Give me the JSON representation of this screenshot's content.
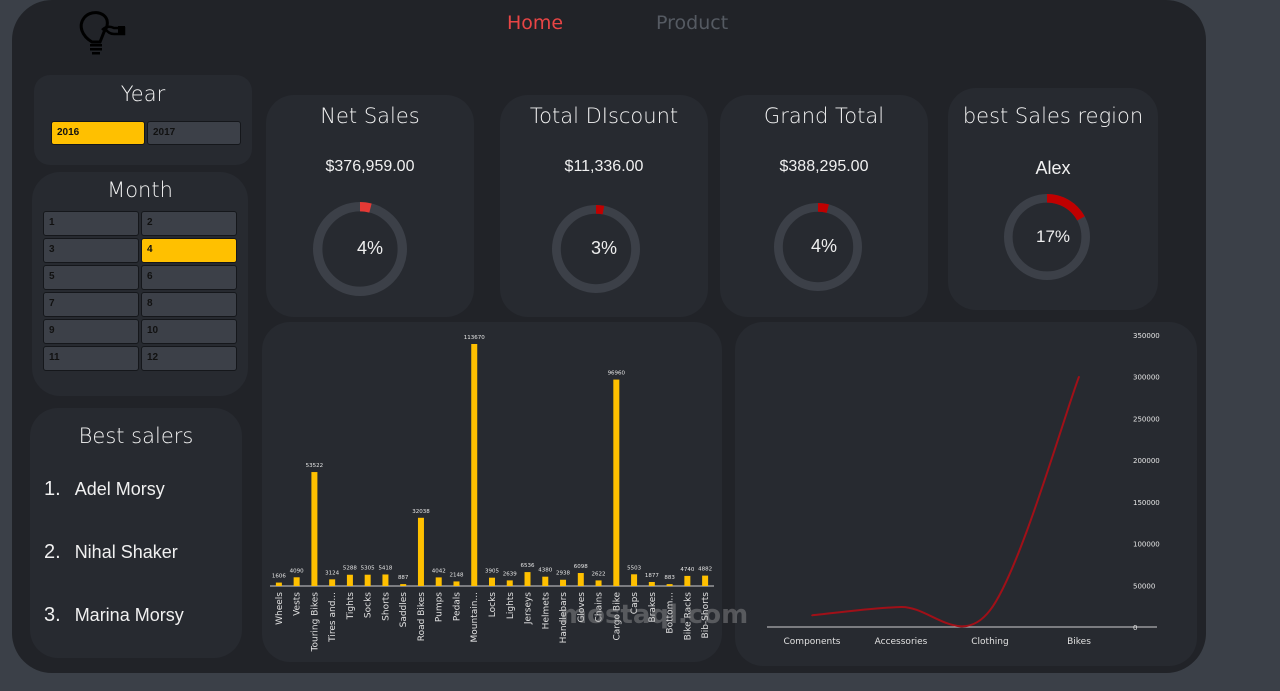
{
  "nav": {
    "home": "Home",
    "product": "Product",
    "home_color": "#e84545",
    "product_color": "#555a62"
  },
  "year_slicer": {
    "title": "Year",
    "options": [
      "2016",
      "2017"
    ],
    "selected": "2016"
  },
  "month_slicer": {
    "title": "Month",
    "options": [
      "1",
      "2",
      "3",
      "4",
      "5",
      "6",
      "7",
      "8",
      "9",
      "10",
      "11",
      "12"
    ],
    "selected": "4"
  },
  "best_salers": {
    "title": "Best salers",
    "items": [
      {
        "rank": "1.",
        "name": "Adel Morsy"
      },
      {
        "rank": "2.",
        "name": "Nihal Shaker"
      },
      {
        "rank": "3.",
        "name": "Marina Morsy"
      }
    ]
  },
  "kpis": [
    {
      "title": "Net Sales",
      "value": "$376,959.00",
      "percent_label": "4%",
      "percent": 4,
      "color": "#e53935"
    },
    {
      "title": "Total DIscount",
      "value": "$11,336.00",
      "percent_label": "3%",
      "percent": 3,
      "color": "#c00000"
    },
    {
      "title": "Grand Total",
      "value": "$388,295.00",
      "percent_label": "4%",
      "percent": 4,
      "color": "#c00000"
    },
    {
      "title": "best Sales region",
      "value": "Alex",
      "percent_label": "17%",
      "percent": 17,
      "color": "#c00000"
    }
  ],
  "accent_color": "#ffc000",
  "watermark": "mostaql.com",
  "chart_data": [
    {
      "type": "bar",
      "title": "",
      "xlabel": "",
      "ylabel": "",
      "categories": [
        "Wheels",
        "Vests",
        "Touring Bikes",
        "Tires and...",
        "Tights",
        "Socks",
        "Shorts",
        "Saddles",
        "Road Bikes",
        "Pumps",
        "Pedals",
        "Mountain...",
        "Locks",
        "Lights",
        "Jerseys",
        "Helmets",
        "Handlebars",
        "Gloves",
        "Chains",
        "Cargo Bike",
        "Caps",
        "Brakes",
        "Bottom...",
        "Bike Racks",
        "Bib-Shorts"
      ],
      "values": [
        1606,
        4090,
        53522,
        3124,
        5288,
        5305,
        5418,
        887,
        32038,
        4042,
        2148,
        113670,
        3905,
        2639,
        6536,
        4380,
        2938,
        6098,
        2622,
        96960,
        5503,
        1877,
        883,
        4740,
        4882
      ],
      "value_labels": [
        "1606",
        "4090",
        "53522",
        "3124",
        "5288",
        "5305",
        "5418",
        "887",
        "32038",
        "4042",
        "2148",
        "113670",
        "3905",
        "2639",
        "6536",
        "4380",
        "2938",
        "6098",
        "2622",
        "96960",
        "5503",
        "1877",
        "883",
        "4740",
        "4882"
      ],
      "ylim": [
        0,
        120000
      ],
      "grid": false,
      "color": "#ffc000"
    },
    {
      "type": "line",
      "title": "",
      "xlabel": "",
      "ylabel": "",
      "categories": [
        "Components",
        "Accessories",
        "Clothing",
        "Bikes"
      ],
      "values": [
        14000,
        24000,
        20000,
        300000
      ],
      "yticks": [
        "0",
        "50000",
        "100000",
        "150000",
        "200000",
        "250000",
        "300000",
        "350000"
      ],
      "ylim": [
        0,
        350000
      ],
      "grid": false,
      "color": "#a01018"
    }
  ]
}
